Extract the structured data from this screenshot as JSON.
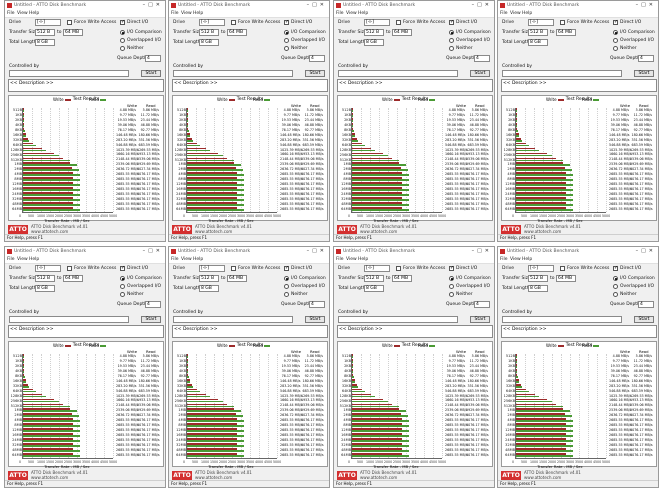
{
  "layout_order": [
    "top-left",
    "top-middle-left",
    "top-middle-right",
    "top-right",
    "bottom-left",
    "bottom-middle-left",
    "bottom-middle-right",
    "bottom-right"
  ],
  "window": {
    "title": "Untitled - ATTO Disk Benchmark",
    "menu": [
      "File",
      "View",
      "Help"
    ]
  },
  "form": {
    "drive_label": "Drive",
    "drive_value": "[-l-]",
    "force_write_label": "Force Write Access",
    "direct_io_label": "Direct I/O",
    "transfer_size_label": "Transfer Size",
    "transfer_from": "512 B",
    "to_label": "to",
    "transfer_to": "64 MB",
    "total_length_label": "Total Length",
    "total_length_value": "8 GB",
    "io_comparison_label": "I/O Comparison",
    "overlapped_io_label": "Overlapped I/O",
    "neither_label": "Neither",
    "queue_depth_label": "Queue Depth",
    "queue_depth_value": "4",
    "controlled_by_label": "Controlled by",
    "start_button": "Start",
    "description_text": "<< Description >>"
  },
  "chart": {
    "title": "Test Results",
    "legend_write": "Write",
    "legend_read": "Read",
    "col_write": "Write",
    "col_read": "Read",
    "xlabel": "Transfer Rate - MB / Sec",
    "xticks": [
      "0",
      "500",
      "1000",
      "1500",
      "2000",
      "2500",
      "3000",
      "3500",
      "4000",
      "4500",
      "5000"
    ],
    "colors": {
      "write": "#9c2a2a",
      "read": "#4a9a34"
    }
  },
  "chart_data": {
    "type": "bar",
    "categories": [
      "512B",
      "1KB",
      "2KB",
      "4KB",
      "8KB",
      "16KB",
      "32KB",
      "64KB",
      "128KB",
      "256KB",
      "512KB",
      "1MB",
      "2MB",
      "4MB",
      "8MB",
      "12MB",
      "16MB",
      "24MB",
      "32MB",
      "48MB",
      "64MB"
    ],
    "series": [
      {
        "name": "Write",
        "values": [
          5,
          10,
          20,
          40,
          78,
          150,
          290,
          560,
          1050,
          1700,
          2200,
          2600,
          2700,
          2750,
          2750,
          2750,
          2750,
          2750,
          2750,
          2750,
          2750
        ]
      },
      {
        "name": "Read",
        "values": [
          6,
          12,
          24,
          48,
          95,
          185,
          360,
          700,
          1300,
          2000,
          2600,
          3000,
          3100,
          3150,
          3150,
          3150,
          3150,
          3150,
          3150,
          3150,
          3150
        ]
      }
    ],
    "xlabel": "Transfer Rate - MB / Sec",
    "xlim": [
      0,
      5000
    ]
  },
  "footer": {
    "logo_text": "ATTO",
    "footer_line1": "ATTO Disk Benchmark v4.01",
    "footer_line2": "www.attotech.com",
    "status": "For Help, press F1"
  }
}
